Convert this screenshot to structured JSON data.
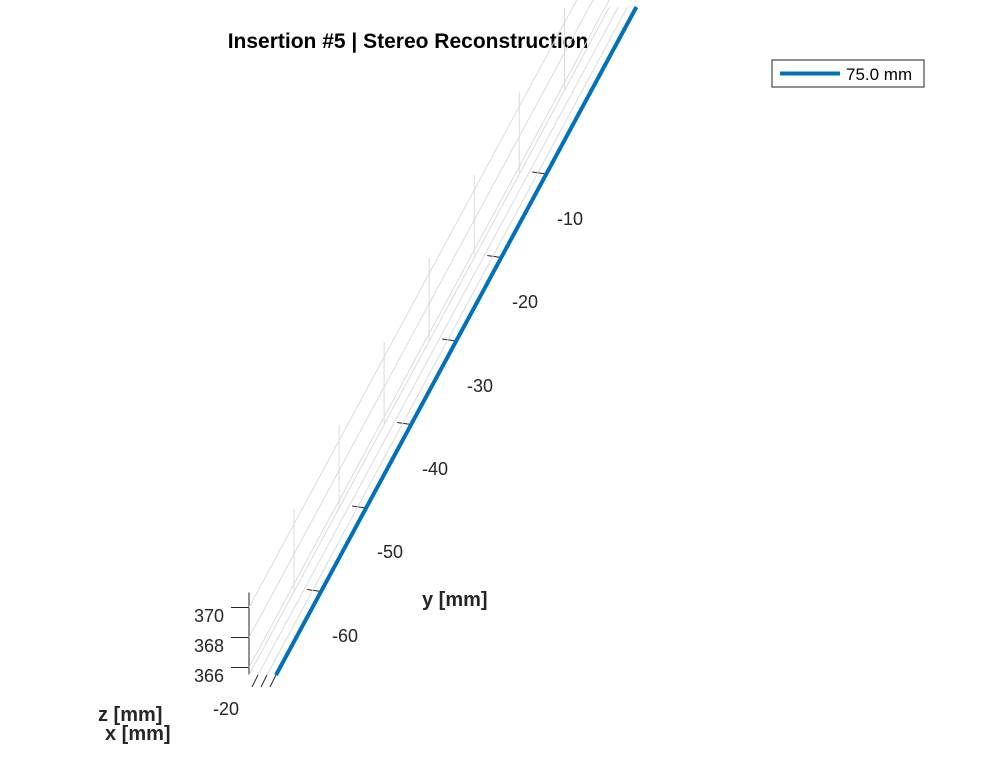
{
  "chart_data": {
    "type": "line",
    "projection": "3d",
    "title": "Insertion #5 | Stereo Reconstruction",
    "xlabel": "x [mm]",
    "ylabel": "y [mm]",
    "zlabel": "z [mm]",
    "x_ticks": [
      "-20"
    ],
    "y_ticks": [
      "-10",
      "-20",
      "-30",
      "-40",
      "-50",
      "-60"
    ],
    "z_ticks": [
      "366",
      "368",
      "370"
    ],
    "y_range": [
      -70,
      10
    ],
    "z_range": [
      365.5,
      371
    ],
    "grid": true,
    "legend_position": "top-right",
    "series": [
      {
        "name": "75.0 mm",
        "color": "#0072BD",
        "y": [
          -70,
          10
        ],
        "z": [
          365.5,
          365.5
        ]
      }
    ]
  }
}
